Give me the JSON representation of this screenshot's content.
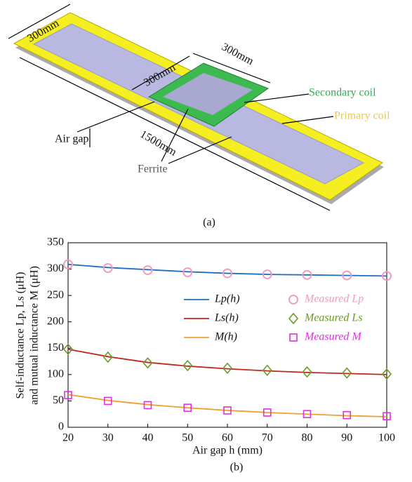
{
  "diagram": {
    "labels": [
      "300mm",
      "300mm",
      "300mm",
      "Secondary coil",
      "Primary coil",
      "Air gap",
      "1500mm",
      "Ferrite"
    ],
    "caption": "(a)"
  },
  "chart_data": {
    "type": "line",
    "caption": "(b)",
    "x_label": "Air gap h (mm)",
    "y_label": [
      "Self-inductance Lp, Ls (μH)",
      "and mutual inductance M (μH)"
    ],
    "x": [
      20,
      30,
      40,
      50,
      60,
      70,
      80,
      90,
      100
    ],
    "xlim": [
      20,
      100
    ],
    "xticks": [
      20,
      30,
      40,
      50,
      60,
      70,
      80,
      90,
      100
    ],
    "ylim": [
      0,
      350
    ],
    "yticks": [
      0,
      50,
      100,
      150,
      200,
      250,
      300,
      350
    ],
    "legend": "right",
    "series": [
      {
        "name": "Lp(h)",
        "color": "#1f6fc0",
        "style": "line",
        "values": [
          309,
          303,
          299,
          295,
          292,
          290,
          289,
          288,
          287
        ]
      },
      {
        "name": "Ls(h)",
        "color": "#c0281e",
        "style": "line",
        "values": [
          148,
          134,
          123,
          116,
          111,
          107,
          104,
          102,
          100
        ]
      },
      {
        "name": "M(h)",
        "color": "#f0a030",
        "style": "line",
        "values": [
          62,
          51,
          43,
          37,
          32,
          28,
          25,
          22,
          20
        ]
      },
      {
        "name": "Measured Lp",
        "color": "#f09cc0",
        "style": "circle",
        "values": [
          309,
          302,
          298,
          294,
          292,
          290,
          289,
          288,
          287
        ]
      },
      {
        "name": "Measured Ls",
        "color": "#6a9a2a",
        "style": "diamond",
        "values": [
          148,
          133,
          122,
          117,
          112,
          108,
          105,
          103,
          101
        ]
      },
      {
        "name": "Measured M",
        "color": "#e030e0",
        "style": "square",
        "values": [
          61,
          50,
          42,
          37,
          32,
          28,
          25,
          23,
          21
        ]
      }
    ]
  }
}
